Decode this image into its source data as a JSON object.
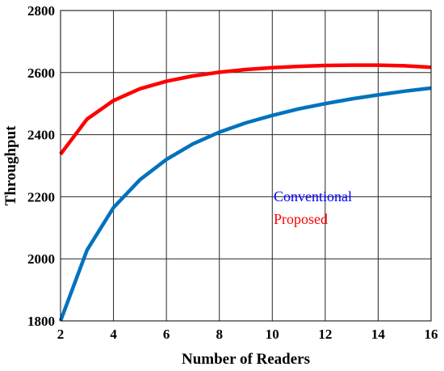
{
  "chart_data": {
    "type": "line",
    "xlabel": "Number of Readers",
    "ylabel": "Throughput",
    "xlim": [
      2,
      16
    ],
    "ylim": [
      1800,
      2800
    ],
    "xticks": [
      2,
      4,
      6,
      8,
      10,
      12,
      14,
      16
    ],
    "yticks": [
      1800,
      2000,
      2200,
      2400,
      2600,
      2800
    ],
    "grid": true,
    "legend_position": "center-right",
    "x": [
      2,
      3,
      4,
      5,
      6,
      7,
      8,
      9,
      10,
      11,
      12,
      13,
      14,
      15,
      16
    ],
    "series": [
      {
        "name": "Conventional",
        "line_color": "#0072BD",
        "label_color": "#0000FF",
        "values": [
          1800,
          2028,
          2165,
          2255,
          2320,
          2370,
          2408,
          2438,
          2462,
          2483,
          2500,
          2515,
          2528,
          2540,
          2550
        ]
      },
      {
        "name": "Proposed",
        "line_color": "#FF0000",
        "label_color": "#FF0000",
        "values": [
          2337,
          2450,
          2510,
          2548,
          2572,
          2589,
          2601,
          2610,
          2616,
          2620,
          2623,
          2624,
          2624,
          2622,
          2617
        ]
      }
    ]
  }
}
